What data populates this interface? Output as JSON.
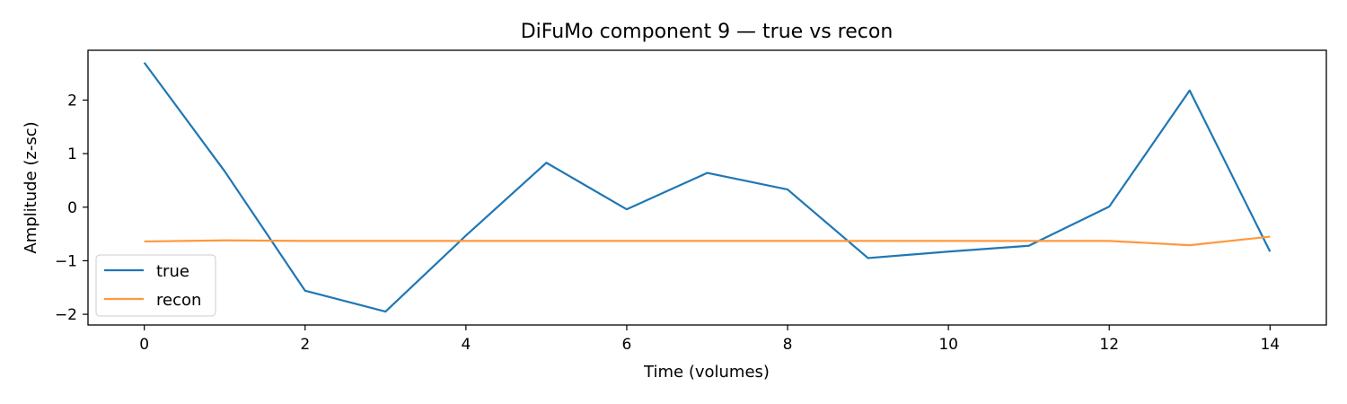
{
  "chart_data": {
    "type": "line",
    "title": "DiFuMo component 9 — true vs recon",
    "xlabel": "Time (volumes)",
    "ylabel": "Amplitude (z-sc)",
    "xlim": [
      -0.7,
      14.7
    ],
    "ylim": [
      -2.2,
      2.93
    ],
    "xticks": [
      0,
      2,
      4,
      6,
      8,
      10,
      12,
      14
    ],
    "xtick_labels": [
      "0",
      "2",
      "4",
      "6",
      "8",
      "10",
      "12",
      "14"
    ],
    "yticks": [
      -2,
      -1,
      0,
      1,
      2
    ],
    "ytick_labels": [
      "−2",
      "−1",
      "0",
      "1",
      "2"
    ],
    "grid": false,
    "legend_position": "lower-left",
    "x": [
      0,
      1,
      2,
      3,
      4,
      5,
      6,
      7,
      8,
      9,
      10,
      11,
      12,
      13,
      14
    ],
    "series": [
      {
        "name": "true",
        "color": "#1f77b4",
        "values": [
          2.7,
          0.67,
          -1.56,
          -1.95,
          -0.53,
          0.83,
          -0.04,
          0.64,
          0.33,
          -0.95,
          -0.83,
          -0.72,
          0.01,
          2.18,
          -0.83
        ]
      },
      {
        "name": "recon",
        "color": "#ff983c",
        "values": [
          -0.64,
          -0.62,
          -0.63,
          -0.63,
          -0.63,
          -0.63,
          -0.63,
          -0.63,
          -0.63,
          -0.63,
          -0.63,
          -0.63,
          -0.63,
          -0.71,
          -0.55
        ]
      }
    ]
  }
}
